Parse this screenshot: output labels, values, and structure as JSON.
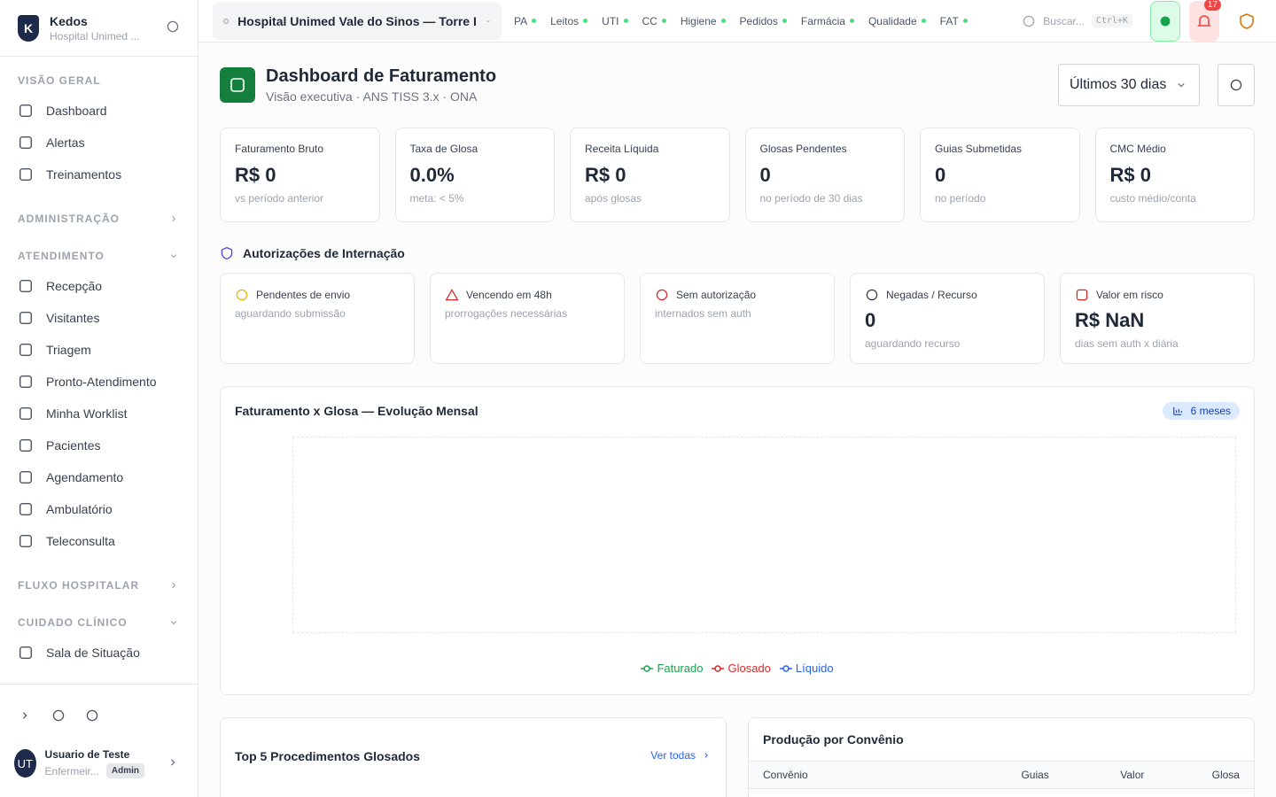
{
  "sidebar": {
    "brand": "Kedos",
    "org": "Hospital Unimed ...",
    "sections": [
      {
        "title": "VISÃO GERAL",
        "items": [
          "Dashboard",
          "Alertas",
          "Treinamentos"
        ]
      },
      {
        "title": "ADMINISTRAÇÃO",
        "items": []
      },
      {
        "title": "ATENDIMENTO",
        "items": [
          "Recepção",
          "Visitantes",
          "Triagem",
          "Pronto-Atendimento",
          "Minha Worklist",
          "Pacientes",
          "Agendamento",
          "Ambulatório",
          "Teleconsulta"
        ]
      },
      {
        "title": "FLUXO HOSPITALAR",
        "items": []
      },
      {
        "title": "CUIDADO CLÍNICO",
        "items": [
          "Sala de Situação"
        ]
      }
    ],
    "user": {
      "initials": "UT",
      "name": "Usuario de Teste",
      "role": "Enfermeir...",
      "badge": "Admin"
    }
  },
  "topbar": {
    "hospital": "Hospital Unimed Vale do Sinos — Torre I",
    "tabs": [
      "PA",
      "Leitos",
      "UTI",
      "CC",
      "Higiene",
      "Pedidos",
      "Farmácia",
      "Qualidade",
      "FAT"
    ],
    "search": "Buscar...",
    "shortcut": "Ctrl+K",
    "notifications": "17"
  },
  "header": {
    "title": "Dashboard de Faturamento",
    "subtitle": "Visão executiva · ANS TISS 3.x · ONA",
    "period": "Últimos 30 dias"
  },
  "kpis": [
    {
      "label": "Faturamento Bruto",
      "value": "R$ 0",
      "note": "vs período anterior"
    },
    {
      "label": "Taxa de Glosa",
      "value": "0.0%",
      "note": "meta: < 5%"
    },
    {
      "label": "Receita Líquida",
      "value": "R$ 0",
      "note": "após glosas"
    },
    {
      "label": "Glosas Pendentes",
      "value": "0",
      "note": "no período de 30 dias"
    },
    {
      "label": "Guias Submetidas",
      "value": "0",
      "note": "no período"
    },
    {
      "label": "CMC Médio",
      "value": "R$ 0",
      "note": "custo médio/conta"
    }
  ],
  "authorizations": {
    "title": "Autorizações de Internação",
    "cards": [
      {
        "label": "Pendentes de envio",
        "note": "aguardando submissão"
      },
      {
        "label": "Vencendo em 48h",
        "note": "prorrogações necessárias"
      },
      {
        "label": "Sem autorização",
        "note": "internados sem auth"
      },
      {
        "label": "Negadas / Recurso",
        "value": "0",
        "note": "aguardando recurso"
      },
      {
        "label": "Valor em risco",
        "value": "R$ NaN",
        "note": "dias sem auth x diária"
      }
    ]
  },
  "chart": {
    "title": "Faturamento x Glosa — Evolução Mensal",
    "badge": "6 meses",
    "legend": [
      {
        "name": "Faturado",
        "color": "#16a34a"
      },
      {
        "name": "Glosado",
        "color": "#dc2626"
      },
      {
        "name": "Líquido",
        "color": "#2563eb"
      }
    ]
  },
  "procedures": {
    "title": "Top 5 Procedimentos Glosados",
    "link": "Ver todas"
  },
  "production": {
    "title": "Produção por Convênio",
    "columns": [
      "Convênio",
      "Guias",
      "Valor",
      "Glosa"
    ]
  }
}
